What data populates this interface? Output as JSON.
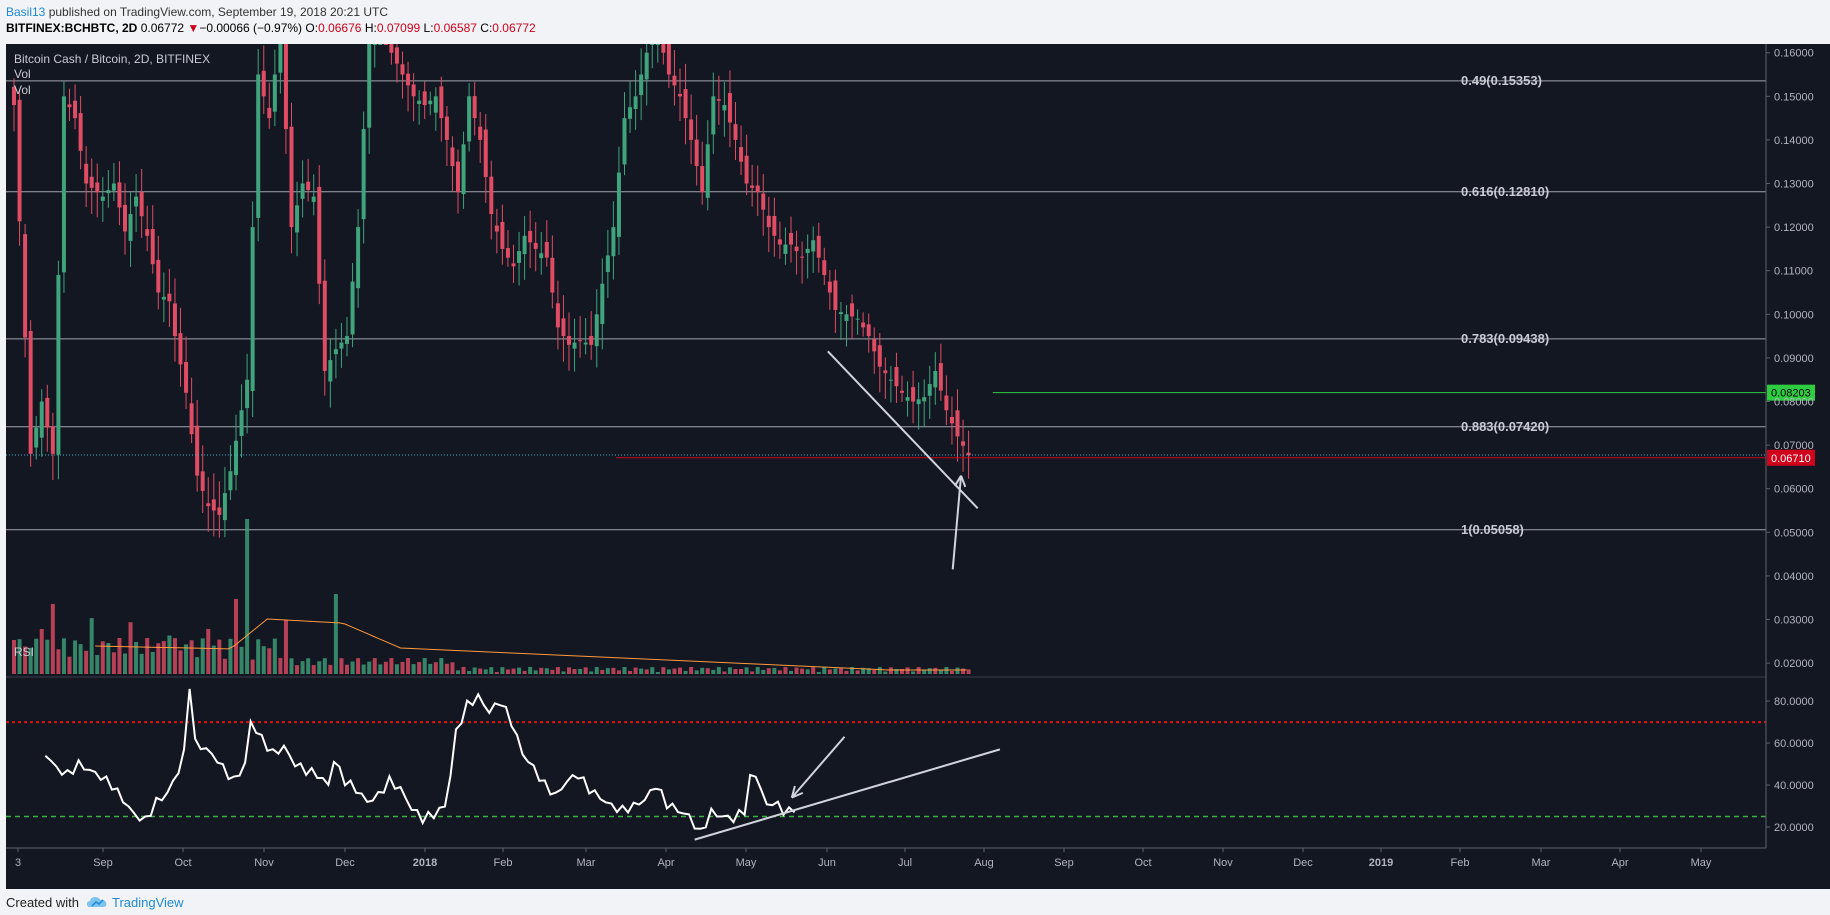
{
  "header": {
    "author": "Basil13",
    "published_text": " published on TradingView.com, September 19, 2018 20:21 UTC",
    "symbol": "BITFINEX:BCHBTC, 2D",
    "price": "0.06772",
    "change_arrow": "▼",
    "change": "−0.00066 (−0.97%)",
    "o_label": "O:",
    "o_value": "0.06676",
    "h_label": "H:",
    "h_value": "0.07099",
    "l_label": "L:",
    "l_value": "0.06587",
    "c_label": "C:",
    "c_value": "0.06772"
  },
  "legend": {
    "title": "Bitcoin Cash / Bitcoin, 2D, BITFINEX",
    "vol1": "Vol",
    "vol2": "Vol",
    "rsi": "RSI"
  },
  "footer": {
    "created_with": "Created with",
    "brand": "TradingView"
  },
  "colors": {
    "background": "#131722",
    "up": "#3fa37c",
    "down": "#e04c64",
    "fib_line": "#d1d4dc",
    "rsi_line": "#ffffff",
    "rsi_overbought": "#e01010",
    "rsi_oversold": "#3cb043",
    "resistance": "#2ecc40",
    "support": "#d0021b",
    "volume_ma": "#ff9a3c"
  },
  "chart_data": [
    {
      "type": "candlestick",
      "title": "Bitcoin Cash / Bitcoin, 2D, BITFINEX",
      "ylim": [
        0.0175,
        0.162
      ],
      "x_ticks": [
        "3",
        "Sep",
        "Oct",
        "Nov",
        "Dec",
        "2018",
        "Feb",
        "Mar",
        "Apr",
        "May",
        "Jun",
        "Jul",
        "Aug",
        "Sep",
        "Oct",
        "Nov",
        "Dec",
        "2019",
        "Feb",
        "Mar",
        "Apr",
        "May"
      ],
      "y_ticks": [
        "0.16000",
        "0.15000",
        "0.14000",
        "0.13000",
        "0.12000",
        "0.11000",
        "0.10000",
        "0.09000",
        "0.08000",
        "0.07000",
        "0.06000",
        "0.05000",
        "0.04000",
        "0.03000",
        "0.02000"
      ],
      "fib_levels": [
        {
          "label": "0.49(0.15353)",
          "value": 0.15353
        },
        {
          "label": "0.616(0.12810)",
          "value": 0.1281
        },
        {
          "label": "0.783(0.09438)",
          "value": 0.09438
        },
        {
          "label": "0.883(0.07420)",
          "value": 0.0742
        },
        {
          "label": "1(0.05058)",
          "value": 0.05058
        }
      ],
      "resistance": {
        "label": "0.08203",
        "value": 0.08203
      },
      "support": {
        "label": "0.06710",
        "value": 0.0671
      },
      "last_close": 0.06772,
      "close_path": [
        [
          0,
          0.148
        ],
        [
          3,
          0.068
        ],
        [
          5,
          0.08
        ],
        [
          7,
          0.068
        ],
        [
          9,
          0.15
        ],
        [
          11,
          0.145
        ],
        [
          13,
          0.13
        ],
        [
          16,
          0.127
        ],
        [
          18,
          0.13
        ],
        [
          20,
          0.119
        ],
        [
          22,
          0.127
        ],
        [
          24,
          0.118
        ],
        [
          26,
          0.105
        ],
        [
          28,
          0.103
        ],
        [
          29,
          0.095
        ],
        [
          31,
          0.082
        ],
        [
          33,
          0.063
        ],
        [
          35,
          0.056
        ],
        [
          37,
          0.054
        ],
        [
          39,
          0.064
        ],
        [
          41,
          0.078
        ],
        [
          42,
          0.085
        ],
        [
          44,
          0.155
        ],
        [
          46,
          0.145
        ],
        [
          48,
          0.165
        ],
        [
          50,
          0.12
        ],
        [
          52,
          0.13
        ],
        [
          54,
          0.127
        ],
        [
          56,
          0.087
        ],
        [
          58,
          0.092
        ],
        [
          60,
          0.095
        ],
        [
          62,
          0.12
        ],
        [
          64,
          0.165
        ],
        [
          66,
          0.17
        ],
        [
          68,
          0.16
        ],
        [
          70,
          0.155
        ],
        [
          72,
          0.15
        ],
        [
          74,
          0.148
        ],
        [
          76,
          0.15
        ],
        [
          78,
          0.14
        ],
        [
          80,
          0.128
        ],
        [
          82,
          0.15
        ],
        [
          84,
          0.14
        ],
        [
          86,
          0.123
        ],
        [
          88,
          0.115
        ],
        [
          90,
          0.111
        ],
        [
          92,
          0.118
        ],
        [
          94,
          0.115
        ],
        [
          96,
          0.113
        ],
        [
          98,
          0.097
        ],
        [
          100,
          0.093
        ],
        [
          102,
          0.094
        ],
        [
          104,
          0.093
        ],
        [
          106,
          0.107
        ],
        [
          108,
          0.12
        ],
        [
          110,
          0.145
        ],
        [
          112,
          0.15
        ],
        [
          114,
          0.16
        ],
        [
          116,
          0.165
        ],
        [
          118,
          0.155
        ],
        [
          120,
          0.15
        ],
        [
          122,
          0.14
        ],
        [
          124,
          0.128
        ],
        [
          126,
          0.15
        ],
        [
          128,
          0.148
        ],
        [
          130,
          0.14
        ],
        [
          132,
          0.13
        ],
        [
          134,
          0.128
        ],
        [
          136,
          0.12
        ],
        [
          138,
          0.116
        ],
        [
          140,
          0.116
        ],
        [
          142,
          0.113
        ],
        [
          144,
          0.117
        ],
        [
          146,
          0.109
        ],
        [
          148,
          0.101
        ],
        [
          150,
          0.1
        ],
        [
          152,
          0.099
        ],
        [
          154,
          0.095
        ],
        [
          156,
          0.088
        ],
        [
          158,
          0.085
        ],
        [
          160,
          0.082
        ],
        [
          162,
          0.08
        ],
        [
          164,
          0.081
        ],
        [
          166,
          0.087
        ],
        [
          168,
          0.078
        ],
        [
          170,
          0.072
        ],
        [
          172,
          0.0677
        ]
      ],
      "annotations": [
        {
          "type": "trendline",
          "from": [
            147,
            0.0915
          ],
          "to": [
            174,
            0.0555
          ]
        },
        {
          "type": "arrow",
          "from": [
            169.5,
            0.0415
          ],
          "to": [
            171,
            0.063
          ]
        }
      ]
    },
    {
      "type": "bar",
      "title": "Vol",
      "note": "volume histogram with moving average"
    },
    {
      "type": "line",
      "title": "RSI",
      "ylim": [
        10,
        91
      ],
      "y_ticks": [
        "80.0000",
        "60.0000",
        "40.0000",
        "20.0000"
      ],
      "overbought": 70,
      "oversold": 25,
      "values": [
        [
          6,
          55
        ],
        [
          8,
          48
        ],
        [
          10,
          45
        ],
        [
          12,
          50
        ],
        [
          14,
          47
        ],
        [
          16,
          44
        ],
        [
          18,
          40
        ],
        [
          20,
          33
        ],
        [
          22,
          26
        ],
        [
          24,
          23
        ],
        [
          26,
          32
        ],
        [
          28,
          36
        ],
        [
          30,
          47
        ],
        [
          31,
          55
        ],
        [
          32,
          88
        ],
        [
          33,
          60
        ],
        [
          35,
          57
        ],
        [
          37,
          52
        ],
        [
          38,
          48
        ],
        [
          40,
          42
        ],
        [
          42,
          50
        ],
        [
          43,
          70
        ],
        [
          45,
          62
        ],
        [
          47,
          55
        ],
        [
          49,
          58
        ],
        [
          51,
          50
        ],
        [
          53,
          47
        ],
        [
          55,
          45
        ],
        [
          57,
          40
        ],
        [
          58,
          52
        ],
        [
          60,
          42
        ],
        [
          62,
          38
        ],
        [
          64,
          32
        ],
        [
          66,
          35
        ],
        [
          68,
          42
        ],
        [
          70,
          38
        ],
        [
          72,
          29
        ],
        [
          74,
          24
        ],
        [
          76,
          26
        ],
        [
          78,
          30
        ],
        [
          79,
          45
        ],
        [
          80,
          65
        ],
        [
          82,
          78
        ],
        [
          84,
          82
        ],
        [
          86,
          75
        ],
        [
          88,
          80
        ],
        [
          90,
          70
        ],
        [
          92,
          55
        ],
        [
          94,
          48
        ],
        [
          96,
          40
        ],
        [
          98,
          35
        ],
        [
          100,
          42
        ],
        [
          102,
          45
        ],
        [
          104,
          38
        ],
        [
          106,
          34
        ],
        [
          108,
          30
        ],
        [
          110,
          28
        ],
        [
          112,
          30
        ],
        [
          114,
          33
        ],
        [
          116,
          40
        ],
        [
          118,
          31
        ],
        [
          120,
          28
        ],
        [
          122,
          25
        ],
        [
          124,
          17
        ],
        [
          126,
          27
        ],
        [
          128,
          25
        ],
        [
          130,
          24
        ],
        [
          132,
          28
        ],
        [
          133,
          43
        ],
        [
          134,
          45
        ],
        [
          136,
          30
        ],
        [
          137,
          32
        ],
        [
          139,
          28
        ],
        [
          141,
          27
        ]
      ],
      "annotations": [
        {
          "type": "trendline",
          "from": [
            123,
            14
          ],
          "to": [
            178,
            57
          ]
        },
        {
          "type": "arrow",
          "from": [
            150,
            63
          ],
          "to": [
            140.5,
            34
          ]
        }
      ]
    }
  ]
}
